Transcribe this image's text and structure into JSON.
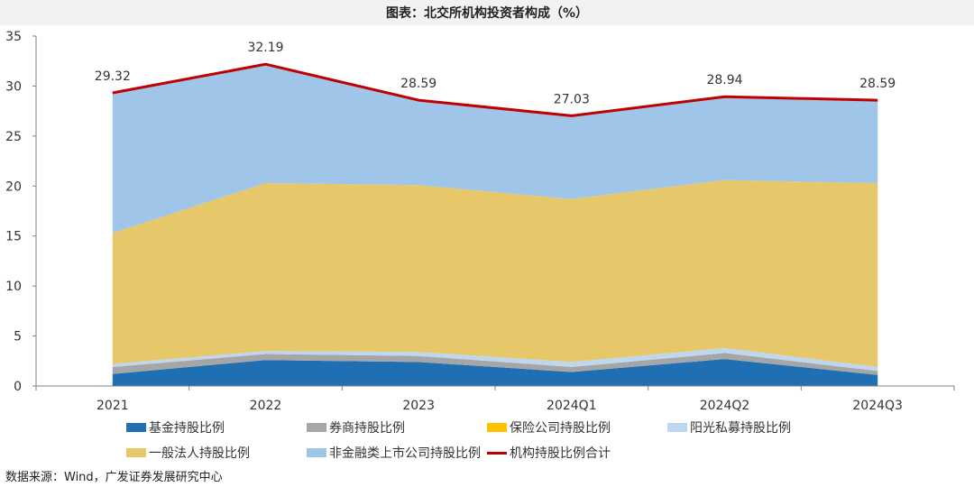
{
  "title": "图表：北交所机构投资者构成（%）",
  "source": "数据来源：Wind，广发证券发展研究中心",
  "chart_data": {
    "type": "area",
    "categories": [
      "2021",
      "2022",
      "2023",
      "2024Q1",
      "2024Q2",
      "2024Q3"
    ],
    "ylim": [
      0,
      35
    ],
    "yticks": [
      0,
      5,
      10,
      15,
      20,
      25,
      30,
      35
    ],
    "grid": false,
    "legend_position": "bottom",
    "series": [
      {
        "name": "基金持股比例",
        "color": "#1f6fb2",
        "values": [
          1.2,
          2.6,
          2.4,
          1.4,
          2.7,
          1.1
        ]
      },
      {
        "name": "券商持股比例",
        "color": "#a6a6a6",
        "values": [
          0.7,
          0.6,
          0.6,
          0.5,
          0.6,
          0.4
        ]
      },
      {
        "name": "保险公司持股比例",
        "color": "#ffc000",
        "values": [
          0.0,
          0.0,
          0.0,
          0.0,
          0.0,
          0.0
        ]
      },
      {
        "name": "阳光私募持股比例",
        "color": "#bdd7ee",
        "values": [
          0.3,
          0.3,
          0.4,
          0.5,
          0.5,
          0.4
        ]
      },
      {
        "name": "一般法人持股比例",
        "color": "#e6c86a",
        "values": [
          13.1,
          16.8,
          16.7,
          16.3,
          16.8,
          18.4
        ]
      },
      {
        "name": "非金融类上市公司持股比例",
        "color": "#9fc5e8",
        "values": [
          14.02,
          11.89,
          8.49,
          8.33,
          8.34,
          8.29
        ]
      }
    ],
    "line": {
      "name": "机构持股比例合计",
      "color": "#c00000",
      "values": [
        29.32,
        32.19,
        28.59,
        27.03,
        28.94,
        28.59
      ],
      "labels": [
        "29.32",
        "32.19",
        "28.59",
        "27.03",
        "28.94",
        "28.59"
      ]
    }
  }
}
